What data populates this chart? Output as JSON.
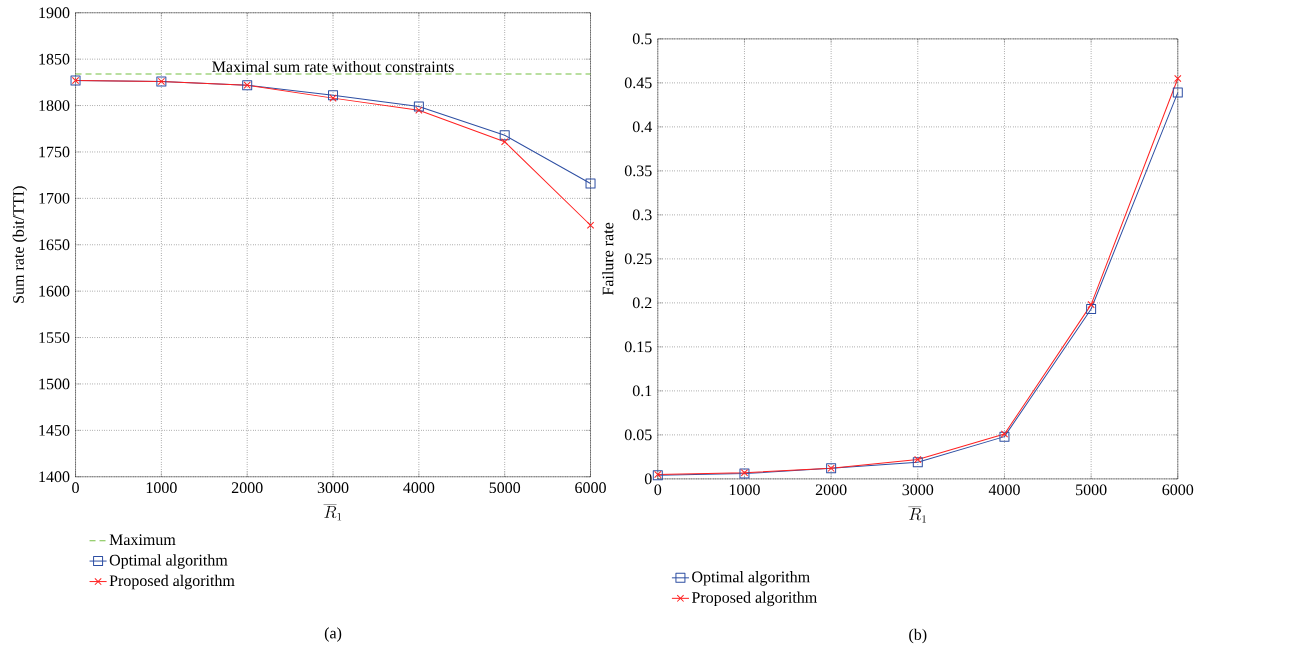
{
  "chart_data": [
    {
      "type": "line",
      "xlabel": "\\overline{R}_1",
      "ylabel": "Sum rate (bit/TTI)",
      "x": [
        0,
        1000,
        2000,
        3000,
        4000,
        5000,
        6000
      ],
      "series": [
        {
          "name": "Maximum",
          "color": "#77c043",
          "line_style": "dashed",
          "marker": "none",
          "values": [
            1834,
            1834,
            1834,
            1834,
            1834,
            1834,
            1834
          ]
        },
        {
          "name": "Optimal algorithm",
          "color": "#2e4fa3",
          "line_style": "solid",
          "marker": "square",
          "values": [
            1827,
            1826,
            1822,
            1811,
            1799,
            1768,
            1716
          ]
        },
        {
          "name": "Proposed algorithm",
          "color": "#ff2020",
          "line_style": "solid",
          "marker": "cross",
          "values": [
            1827,
            1826,
            1822,
            1808,
            1795,
            1761,
            1671
          ]
        }
      ],
      "xlim": [
        0,
        6000
      ],
      "xticks": [
        0,
        1000,
        2000,
        3000,
        4000,
        5000,
        6000
      ],
      "ylim": [
        1400,
        1900
      ],
      "yticks": [
        1400,
        1450,
        1500,
        1550,
        1600,
        1650,
        1700,
        1750,
        1800,
        1850,
        1900
      ],
      "grid": true,
      "legend": "bottom",
      "annotations": [
        "Maximal sum rate without constraints",
        "(a)"
      ]
    },
    {
      "type": "line",
      "xlabel": "\\overline{R}_1",
      "ylabel": "Failure rate",
      "x": [
        0,
        1000,
        2000,
        3000,
        4000,
        5000,
        6000
      ],
      "series": [
        {
          "name": "Optimal algorithm",
          "color": "#2e4fa3",
          "line_style": "solid",
          "marker": "square",
          "values": [
            0.004,
            0.006,
            0.012,
            0.019,
            0.048,
            0.193,
            0.439
          ]
        },
        {
          "name": "Proposed algorithm",
          "color": "#ff2020",
          "line_style": "solid",
          "marker": "cross",
          "values": [
            0.005,
            0.007,
            0.012,
            0.022,
            0.051,
            0.198,
            0.455
          ]
        }
      ],
      "xlim": [
        0,
        6000
      ],
      "xticks": [
        0,
        1000,
        2000,
        3000,
        4000,
        5000,
        6000
      ],
      "ylim": [
        0,
        0.5
      ],
      "yticks": [
        0,
        0.05,
        0.1,
        0.15,
        0.2,
        0.25,
        0.3,
        0.35,
        0.4,
        0.45,
        0.5
      ],
      "grid": true,
      "legend": "bottom",
      "annotations": [
        "(b)"
      ]
    }
  ]
}
